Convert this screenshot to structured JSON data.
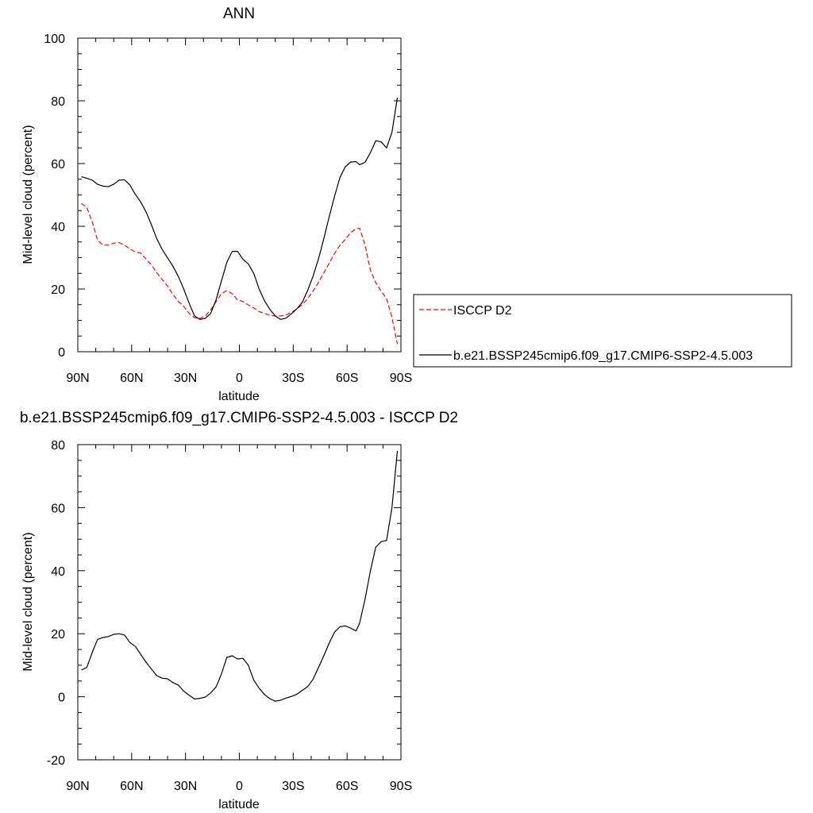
{
  "chart_data": [
    {
      "type": "line",
      "title": "ANN",
      "xlabel": "latitude",
      "ylabel": "Mid-level cloud (percent)",
      "xlim": [
        90,
        -90
      ],
      "ylim": [
        0,
        100
      ],
      "x_ticks": [
        {
          "value": 90,
          "label": "90N"
        },
        {
          "value": 60,
          "label": "60N"
        },
        {
          "value": 30,
          "label": "30N"
        },
        {
          "value": 0,
          "label": "0"
        },
        {
          "value": -30,
          "label": "30S"
        },
        {
          "value": -60,
          "label": "60S"
        },
        {
          "value": -90,
          "label": "90S"
        }
      ],
      "y_ticks": [
        0,
        20,
        40,
        60,
        80,
        100
      ],
      "legend_position": "right",
      "series": [
        {
          "name": "ISCCP D2",
          "color": "#ff0000",
          "dash": "dashed",
          "x": [
            88,
            85,
            82,
            79,
            76,
            73,
            70,
            67,
            64,
            61,
            58,
            55,
            52,
            49,
            46,
            43,
            40,
            37,
            34,
            31,
            28,
            25,
            22,
            19,
            16,
            13,
            10,
            7,
            4,
            1,
            -2,
            -5,
            -8,
            -11,
            -14,
            -17,
            -20,
            -23,
            -26,
            -29,
            -32,
            -35,
            -38,
            -41,
            -44,
            -47,
            -50,
            -53,
            -56,
            -59,
            -62,
            -65,
            -67,
            -70,
            -73,
            -76,
            -79,
            -82,
            -85,
            -88
          ],
          "y": [
            47.3,
            46.0,
            41.5,
            35.6,
            34.0,
            34.0,
            34.6,
            34.8,
            34.0,
            32.8,
            31.8,
            31.5,
            29.6,
            27.7,
            25.2,
            23.0,
            20.9,
            18.3,
            16.0,
            14.5,
            12.2,
            10.8,
            10.6,
            11.4,
            13.3,
            15.9,
            18.5,
            19.5,
            18.5,
            16.5,
            16.0,
            14.9,
            14.0,
            12.8,
            12.2,
            11.6,
            11.4,
            11.4,
            11.7,
            12.6,
            13.6,
            15.0,
            16.9,
            19.3,
            22.0,
            25.1,
            28.2,
            31.3,
            33.9,
            35.8,
            38.0,
            39.2,
            39.4,
            34.0,
            26.0,
            22.0,
            19.3,
            17.0,
            11.0,
            2.5
          ]
        },
        {
          "name": "b.e21.BSSP245cmip6.f09_g17.CMIP6-SSP2-4.5.003",
          "color": "#000000",
          "dash": "solid",
          "x": [
            88,
            85,
            82,
            79,
            76,
            73,
            70,
            67,
            64,
            61,
            58,
            55,
            52,
            49,
            46,
            43,
            40,
            37,
            34,
            31,
            28,
            25,
            22,
            19,
            16,
            13,
            10,
            7,
            4,
            1,
            -2,
            -5,
            -8,
            -11,
            -14,
            -17,
            -20,
            -23,
            -26,
            -29,
            -32,
            -35,
            -38,
            -41,
            -44,
            -47,
            -50,
            -53,
            -56,
            -59,
            -62,
            -65,
            -67,
            -70,
            -73,
            -76,
            -79,
            -82,
            -85,
            -88
          ],
          "y": [
            55.8,
            55.3,
            54.7,
            53.4,
            52.8,
            52.6,
            53.4,
            54.7,
            54.8,
            53.2,
            50.2,
            47.8,
            44.6,
            40.5,
            36.0,
            32.6,
            29.9,
            27.3,
            24.0,
            20.0,
            15.5,
            11.4,
            10.3,
            10.6,
            12.2,
            16.5,
            22.5,
            28.5,
            32.0,
            32.0,
            29.5,
            28.0,
            25.0,
            20.0,
            16.2,
            13.5,
            11.4,
            10.3,
            10.7,
            12.1,
            13.7,
            15.7,
            19.5,
            24.0,
            29.5,
            36.0,
            43.0,
            49.5,
            55.5,
            59.0,
            60.5,
            60.6,
            59.6,
            60.4,
            63.5,
            67.3,
            66.9,
            65.0,
            70.0,
            81.0
          ]
        }
      ]
    },
    {
      "type": "line",
      "title": "b.e21.BSSP245cmip6.f09_g17.CMIP6-SSP2-4.5.003 - ISCCP D2",
      "xlabel": "latitude",
      "ylabel": "Mid-level cloud (percent)",
      "xlim": [
        90,
        -90
      ],
      "ylim": [
        -20,
        80
      ],
      "x_ticks": [
        {
          "value": 90,
          "label": "90N"
        },
        {
          "value": 60,
          "label": "60N"
        },
        {
          "value": 30,
          "label": "30N"
        },
        {
          "value": 0,
          "label": "0"
        },
        {
          "value": -30,
          "label": "30S"
        },
        {
          "value": -60,
          "label": "60S"
        },
        {
          "value": -90,
          "label": "90S"
        }
      ],
      "y_ticks": [
        -20,
        0,
        20,
        40,
        60,
        80
      ],
      "series": [
        {
          "color": "#000000",
          "dash": "solid",
          "x": [
            88,
            85,
            82,
            79,
            76,
            73,
            70,
            67,
            64,
            61,
            58,
            55,
            52,
            49,
            46,
            43,
            40,
            37,
            34,
            31,
            28,
            25,
            22,
            19,
            16,
            13,
            10,
            7,
            4,
            1,
            -2,
            -5,
            -8,
            -11,
            -14,
            -17,
            -20,
            -23,
            -26,
            -29,
            -32,
            -35,
            -38,
            -41,
            -44,
            -47,
            -50,
            -53,
            -56,
            -59,
            -62,
            -65,
            -67,
            -70,
            -73,
            -76,
            -79,
            -82,
            -85,
            -88
          ],
          "y": [
            8.5,
            9.3,
            14.0,
            18.2,
            18.8,
            19.1,
            19.8,
            20.0,
            19.6,
            17.2,
            16.0,
            13.5,
            11.0,
            8.8,
            6.7,
            5.9,
            5.7,
            4.5,
            3.7,
            1.8,
            0.5,
            -0.7,
            -0.5,
            -0.1,
            1.2,
            3.1,
            7.2,
            12.5,
            13.0,
            12.0,
            12.2,
            10.0,
            5.3,
            2.7,
            0.7,
            -0.6,
            -1.4,
            -1.1,
            -0.4,
            0.1,
            0.8,
            2.0,
            3.2,
            5.5,
            9.2,
            13.0,
            17.0,
            20.5,
            22.2,
            22.5,
            21.8,
            20.9,
            23.4,
            31.0,
            40.0,
            47.5,
            49.2,
            49.6,
            60.0,
            78.0
          ]
        }
      ]
    }
  ]
}
